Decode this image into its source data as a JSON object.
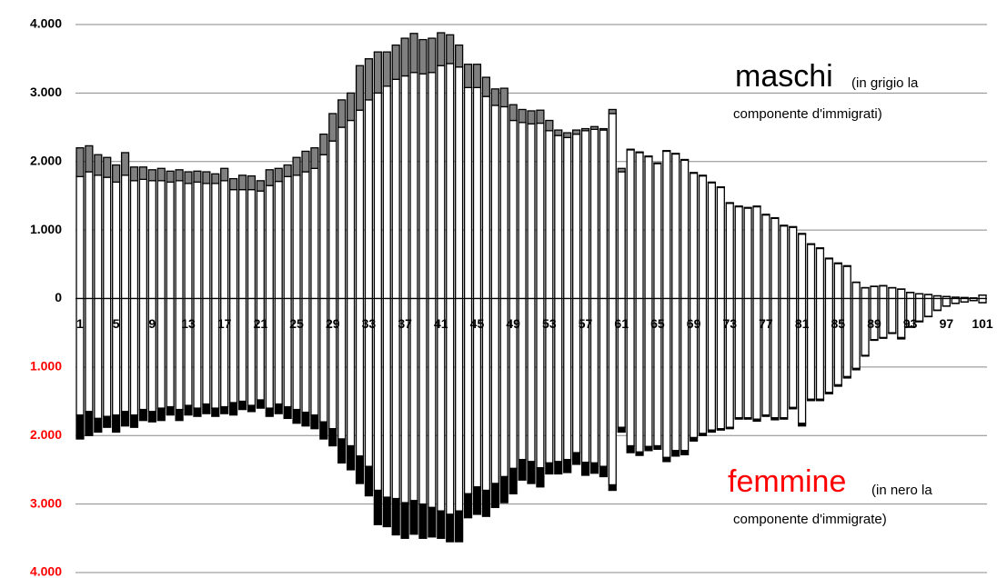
{
  "chart_data": {
    "type": "bar",
    "stacked": true,
    "categories": [
      "1",
      null,
      null,
      null,
      "5",
      null,
      null,
      null,
      "9",
      null,
      null,
      null,
      "13",
      null,
      null,
      null,
      "17",
      null,
      null,
      null,
      "21",
      null,
      null,
      null,
      "25",
      null,
      null,
      null,
      "29",
      null,
      null,
      null,
      "33",
      null,
      null,
      null,
      "37",
      null,
      null,
      null,
      "41",
      null,
      null,
      null,
      "45",
      null,
      null,
      null,
      "49",
      null,
      null,
      null,
      "53",
      null,
      null,
      null,
      "57",
      null,
      null,
      null,
      "61",
      null,
      null,
      null,
      "65",
      null,
      null,
      null,
      "69",
      null,
      null,
      null,
      "73",
      null,
      null,
      null,
      "77",
      null,
      null,
      null,
      "81",
      null,
      null,
      null,
      "85",
      null,
      null,
      null,
      "89",
      null,
      null,
      null,
      "93",
      null,
      null,
      null,
      "97",
      null,
      null,
      null,
      "101"
    ],
    "series": [
      {
        "color": "#ffffff",
        "values": [
          1780,
          1850,
          1800,
          1770,
          1700,
          1800,
          1720,
          1740,
          1720,
          1720,
          1700,
          1720,
          1680,
          1700,
          1680,
          1680,
          1720,
          1590,
          1590,
          1590,
          1570,
          1650,
          1710,
          1780,
          1800,
          1850,
          1900,
          2100,
          2300,
          2500,
          2600,
          2750,
          2900,
          3000,
          3100,
          3200,
          3250,
          3300,
          3280,
          3300,
          3400,
          3430,
          3380,
          3080,
          3080,
          2950,
          2820,
          2800,
          2600,
          2570,
          2550,
          2560,
          2450,
          2380,
          2350,
          2400,
          2450,
          2470,
          2460,
          2700,
          1850,
          2170,
          2130,
          2070,
          1970,
          2150,
          2110,
          2020,
          1830,
          1790,
          1690,
          1620,
          1390,
          1340,
          1320,
          1340,
          1220,
          1170,
          1060,
          1040,
          940,
          790,
          730,
          580,
          510,
          470,
          235,
          155,
          175,
          185,
          155,
          135,
          87,
          68,
          58,
          39,
          29,
          19,
          14,
          10,
          49
        ]
      },
      {
        "color": "#808080",
        "values": [
          420,
          380,
          300,
          290,
          250,
          330,
          200,
          180,
          160,
          180,
          160,
          160,
          170,
          160,
          170,
          140,
          180,
          160,
          210,
          200,
          150,
          230,
          190,
          170,
          260,
          300,
          300,
          300,
          400,
          400,
          400,
          650,
          600,
          600,
          500,
          500,
          550,
          570,
          500,
          500,
          480,
          420,
          320,
          340,
          340,
          280,
          240,
          270,
          230,
          190,
          190,
          190,
          150,
          80,
          70,
          60,
          30,
          40,
          20,
          60,
          50,
          10,
          10,
          10,
          10,
          10,
          10,
          10,
          10,
          10,
          10,
          10,
          10,
          10,
          10,
          10,
          10,
          10,
          10,
          10,
          10,
          10,
          10,
          10,
          10,
          10,
          5,
          5,
          5,
          5,
          5,
          5,
          3,
          2,
          2,
          1,
          1,
          1,
          1,
          0,
          1
        ]
      },
      {
        "color": "#ffffff",
        "values": [
          -1700,
          -1650,
          -1750,
          -1720,
          -1700,
          -1650,
          -1700,
          -1620,
          -1650,
          -1600,
          -1580,
          -1620,
          -1560,
          -1600,
          -1540,
          -1600,
          -1580,
          -1520,
          -1500,
          -1560,
          -1480,
          -1600,
          -1540,
          -1580,
          -1620,
          -1660,
          -1700,
          -1800,
          -1900,
          -2050,
          -2150,
          -2300,
          -2450,
          -2800,
          -2900,
          -2920,
          -2980,
          -2950,
          -3000,
          -3050,
          -3100,
          -3150,
          -3100,
          -2850,
          -2750,
          -2800,
          -2700,
          -2600,
          -2480,
          -2350,
          -2380,
          -2470,
          -2400,
          -2380,
          -2350,
          -2250,
          -2390,
          -2400,
          -2450,
          -2720,
          -1880,
          -2150,
          -2240,
          -2160,
          -2150,
          -2320,
          -2220,
          -2220,
          -2030,
          -1970,
          -1920,
          -1900,
          -1880,
          -1740,
          -1740,
          -1760,
          -1700,
          -1740,
          -1740,
          -1590,
          -1820,
          -1470,
          -1470,
          -1370,
          -1260,
          -1140,
          -1020,
          -830,
          -600,
          -570,
          -500,
          -570,
          -410,
          -330,
          -260,
          -170,
          -110,
          -70,
          -50,
          -30,
          -60
        ]
      },
      {
        "color": "#000000",
        "values": [
          -350,
          -350,
          -200,
          -160,
          -250,
          -210,
          -180,
          -160,
          -150,
          -180,
          -120,
          -160,
          -140,
          -120,
          -140,
          -120,
          -100,
          -180,
          -120,
          -90,
          -120,
          -120,
          -140,
          -170,
          -200,
          -200,
          -200,
          -250,
          -250,
          -350,
          -350,
          -400,
          -430,
          -500,
          -430,
          -530,
          -520,
          -490,
          -500,
          -430,
          -400,
          -400,
          -450,
          -350,
          -400,
          -380,
          -350,
          -380,
          -370,
          -300,
          -320,
          -280,
          -160,
          -180,
          -190,
          -170,
          -190,
          -150,
          -150,
          -80,
          -70,
          -100,
          -50,
          -60,
          -50,
          -60,
          -80,
          -60,
          -50,
          -30,
          -30,
          -20,
          -20,
          -20,
          -20,
          -30,
          -20,
          -30,
          -20,
          -20,
          -40,
          -20,
          -20,
          -20,
          -20,
          -20,
          -20,
          -10,
          -10,
          -10,
          -10,
          -20,
          -10,
          -10,
          -5,
          -5,
          -2,
          -2,
          -1,
          -1,
          -1
        ]
      }
    ],
    "ylim": [
      -4000,
      4000
    ],
    "yticks": [
      {
        "value": 4000,
        "label": "4.000"
      },
      {
        "value": 3000,
        "label": "3.000"
      },
      {
        "value": 2000,
        "label": "2.000"
      },
      {
        "value": 1000,
        "label": "1.000"
      },
      0,
      {
        "value": -1000,
        "label": "1.000"
      },
      {
        "value": -2000,
        "label": "2.000"
      },
      {
        "value": -3000,
        "label": "3.000"
      },
      {
        "value": -4000,
        "label": "4.000"
      }
    ],
    "negative_tick_color": "#ff0000",
    "grid": true,
    "annotations": [
      {
        "text": "maschi",
        "color": "#000000"
      },
      {
        "text": "(in grigio la",
        "color": "#000000"
      },
      {
        "text": "componente d'immigrati)",
        "color": "#000000"
      },
      {
        "text": "femmine",
        "color": "#ff0000"
      },
      {
        "text": "(in nero la",
        "color": "#000000"
      },
      {
        "text": "componente d'immigrate)",
        "color": "#000000"
      }
    ]
  }
}
